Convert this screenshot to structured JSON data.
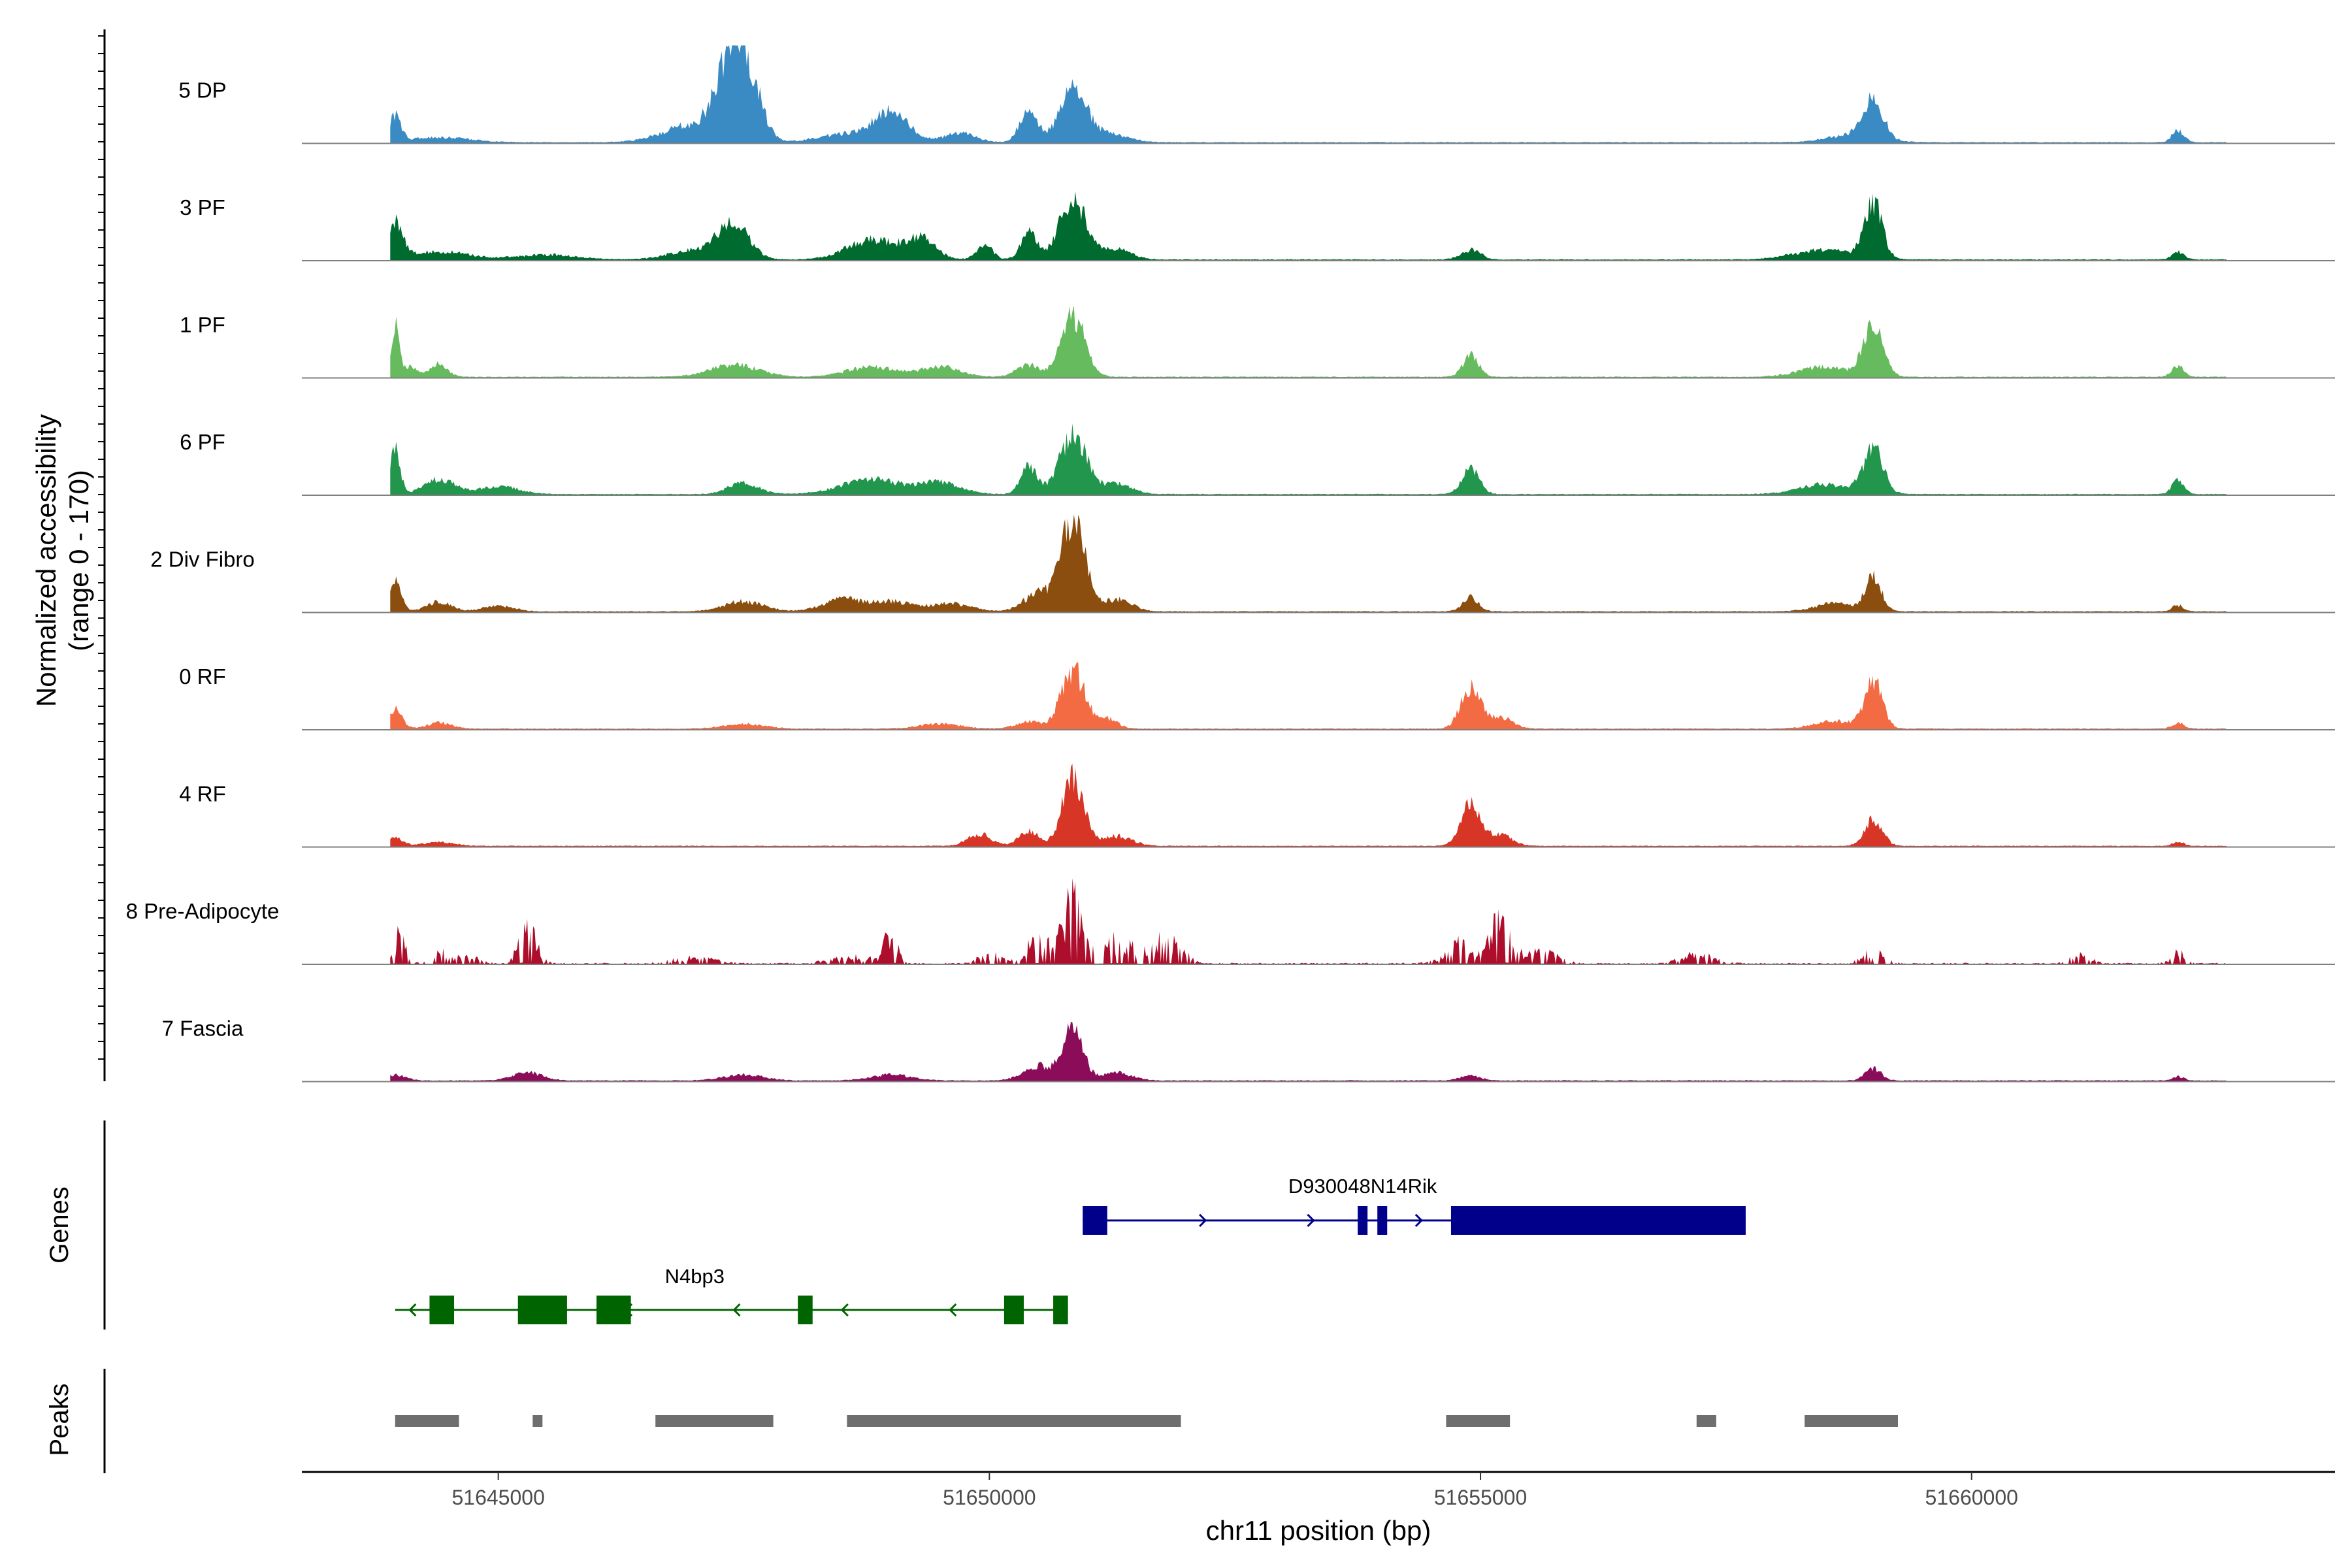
{
  "chart_data": {
    "type": "area",
    "title": "",
    "ylabel": "Normalized accessibility\n(range 0 - 170)",
    "ylabel_lines": [
      "Normalized accessibility",
      "(range 0 - 170)"
    ],
    "xlabel": "chr11 position (bp)",
    "xlim": [
      51643000,
      51663700
    ],
    "ylim": [
      0,
      170
    ],
    "x_ticks": [
      51645000,
      51650000,
      51655000,
      51660000
    ],
    "x_tick_labels": [
      "51645000",
      "51650000",
      "51655000",
      "51660000"
    ],
    "signal_range": [
      51643900,
      51662600
    ],
    "series": [
      {
        "name": "5 DP",
        "color": "#3a8ac4",
        "peaks": [
          [
            51643950,
            0.25,
            60
          ],
          [
            51644400,
            0.05,
            300
          ],
          [
            51647000,
            0.18,
            300
          ],
          [
            51647400,
            0.95,
            150
          ],
          [
            51647600,
            0.3,
            120
          ],
          [
            51648500,
            0.08,
            250
          ],
          [
            51649000,
            0.3,
            180
          ],
          [
            51649700,
            0.1,
            150
          ],
          [
            51650400,
            0.32,
            90
          ],
          [
            51650850,
            0.5,
            140
          ],
          [
            51651200,
            0.08,
            200
          ],
          [
            51658800,
            0.08,
            250
          ],
          [
            51659000,
            0.38,
            100
          ],
          [
            51662100,
            0.12,
            60
          ]
        ]
      },
      {
        "name": "3 PF",
        "color": "#006b2e",
        "peaks": [
          [
            51643950,
            0.35,
            80
          ],
          [
            51644400,
            0.08,
            300
          ],
          [
            51645500,
            0.05,
            300
          ],
          [
            51647000,
            0.1,
            250
          ],
          [
            51647400,
            0.38,
            150
          ],
          [
            51648800,
            0.2,
            250
          ],
          [
            51649300,
            0.2,
            150
          ],
          [
            51649950,
            0.15,
            80
          ],
          [
            51650400,
            0.28,
            80
          ],
          [
            51650850,
            0.6,
            140
          ],
          [
            51651300,
            0.1,
            150
          ],
          [
            51654900,
            0.1,
            100
          ],
          [
            51658500,
            0.1,
            300
          ],
          [
            51659000,
            0.55,
            90
          ],
          [
            51662100,
            0.08,
            60
          ]
        ]
      },
      {
        "name": "1 PF",
        "color": "#66bb5e",
        "peaks": [
          [
            51643950,
            0.5,
            40
          ],
          [
            51644100,
            0.1,
            80
          ],
          [
            51644400,
            0.14,
            80
          ],
          [
            51647400,
            0.12,
            250
          ],
          [
            51648800,
            0.1,
            250
          ],
          [
            51649500,
            0.1,
            200
          ],
          [
            51650400,
            0.12,
            120
          ],
          [
            51650850,
            0.62,
            120
          ],
          [
            51654900,
            0.22,
            80
          ],
          [
            51658500,
            0.1,
            250
          ],
          [
            51659000,
            0.5,
            100
          ],
          [
            51662100,
            0.12,
            60
          ]
        ]
      },
      {
        "name": "6 PF",
        "color": "#21964c",
        "peaks": [
          [
            51643950,
            0.45,
            50
          ],
          [
            51644400,
            0.15,
            150
          ],
          [
            51645000,
            0.08,
            200
          ],
          [
            51647500,
            0.12,
            150
          ],
          [
            51648800,
            0.15,
            300
          ],
          [
            51649500,
            0.12,
            200
          ],
          [
            51650400,
            0.28,
            80
          ],
          [
            51650850,
            0.58,
            140
          ],
          [
            51651300,
            0.1,
            150
          ],
          [
            51654900,
            0.25,
            90
          ],
          [
            51658500,
            0.1,
            250
          ],
          [
            51659000,
            0.45,
            100
          ],
          [
            51662100,
            0.14,
            60
          ]
        ]
      },
      {
        "name": "2 Div Fibro",
        "color": "#8b4e0e",
        "peaks": [
          [
            51643950,
            0.3,
            60
          ],
          [
            51644400,
            0.1,
            120
          ],
          [
            51645000,
            0.06,
            150
          ],
          [
            51647500,
            0.1,
            200
          ],
          [
            51648500,
            0.12,
            200
          ],
          [
            51649000,
            0.1,
            200
          ],
          [
            51649600,
            0.08,
            200
          ],
          [
            51650500,
            0.18,
            150
          ],
          [
            51650850,
            0.92,
            120
          ],
          [
            51651300,
            0.12,
            150
          ],
          [
            51654900,
            0.14,
            80
          ],
          [
            51658600,
            0.08,
            200
          ],
          [
            51659000,
            0.35,
            80
          ],
          [
            51662100,
            0.06,
            60
          ]
        ]
      },
      {
        "name": "0 RF",
        "color": "#f26b42",
        "peaks": [
          [
            51643950,
            0.2,
            70
          ],
          [
            51644400,
            0.06,
            120
          ],
          [
            51647500,
            0.05,
            200
          ],
          [
            51649500,
            0.05,
            200
          ],
          [
            51650400,
            0.08,
            120
          ],
          [
            51650850,
            0.6,
            120
          ],
          [
            51651200,
            0.1,
            100
          ],
          [
            51654900,
            0.42,
            100
          ],
          [
            51655200,
            0.12,
            120
          ],
          [
            51658600,
            0.08,
            200
          ],
          [
            51659000,
            0.48,
            90
          ],
          [
            51662100,
            0.06,
            60
          ]
        ]
      },
      {
        "name": "4 RF",
        "color": "#d73626",
        "peaks": [
          [
            51643950,
            0.08,
            80
          ],
          [
            51644400,
            0.04,
            150
          ],
          [
            51649900,
            0.12,
            120
          ],
          [
            51650400,
            0.15,
            100
          ],
          [
            51650850,
            0.68,
            110
          ],
          [
            51651300,
            0.1,
            150
          ],
          [
            51654900,
            0.42,
            100
          ],
          [
            51655200,
            0.12,
            120
          ],
          [
            51659000,
            0.28,
            90
          ],
          [
            51662100,
            0.04,
            60
          ]
        ]
      },
      {
        "name": "8 Pre-Adipocyte",
        "color": "#ad0e2c",
        "noisy": true,
        "peaks": [
          [
            51644000,
            0.3,
            60
          ],
          [
            51644400,
            0.12,
            100
          ],
          [
            51644700,
            0.08,
            100
          ],
          [
            51645300,
            0.45,
            80
          ],
          [
            51647000,
            0.06,
            200
          ],
          [
            51648600,
            0.08,
            200
          ],
          [
            51649000,
            0.35,
            60
          ],
          [
            51650000,
            0.1,
            100
          ],
          [
            51650500,
            0.25,
            120
          ],
          [
            51650850,
            0.62,
            100
          ],
          [
            51651300,
            0.25,
            150
          ],
          [
            51651800,
            0.25,
            150
          ],
          [
            51654800,
            0.2,
            150
          ],
          [
            51655200,
            0.42,
            100
          ],
          [
            51655600,
            0.15,
            150
          ],
          [
            51657200,
            0.1,
            150
          ],
          [
            51659000,
            0.12,
            100
          ],
          [
            51661100,
            0.1,
            100
          ],
          [
            51662100,
            0.12,
            60
          ]
        ]
      },
      {
        "name": "7 Fascia",
        "color": "#8b0d59",
        "peaks": [
          [
            51643950,
            0.06,
            100
          ],
          [
            51645300,
            0.08,
            150
          ],
          [
            51647500,
            0.06,
            200
          ],
          [
            51649000,
            0.06,
            200
          ],
          [
            51650500,
            0.15,
            150
          ],
          [
            51650850,
            0.55,
            100
          ],
          [
            51651300,
            0.08,
            150
          ],
          [
            51654900,
            0.05,
            100
          ],
          [
            51659000,
            0.12,
            80
          ],
          [
            51662100,
            0.04,
            60
          ]
        ]
      }
    ],
    "genes": [
      {
        "name": "D930048N14Rik",
        "strand": "+",
        "color": "#00008b",
        "start": 51650950,
        "end": 51657700,
        "exons": [
          [
            51650950,
            51651200
          ],
          [
            51653750,
            51653850
          ],
          [
            51653950,
            51654050
          ],
          [
            51654700,
            51657700
          ]
        ]
      },
      {
        "name": "N4bp3",
        "strand": "-",
        "color": "#006400",
        "start": 51643950,
        "end": 51650800,
        "exons": [
          [
            51644300,
            51644550
          ],
          [
            51645200,
            51645700
          ],
          [
            51646000,
            51646350
          ],
          [
            51648050,
            51648200
          ],
          [
            51650150,
            51650350
          ],
          [
            51650650,
            51650800
          ]
        ]
      }
    ],
    "peaks_track": [
      [
        51643950,
        51644600
      ],
      [
        51645350,
        51645450
      ],
      [
        51646600,
        51647800
      ],
      [
        51648550,
        51651950
      ],
      [
        51654650,
        51655300
      ],
      [
        51657200,
        51657400
      ],
      [
        51658300,
        51659250
      ]
    ],
    "panels": {
      "genes": "Genes",
      "peaks": "Peaks"
    }
  }
}
